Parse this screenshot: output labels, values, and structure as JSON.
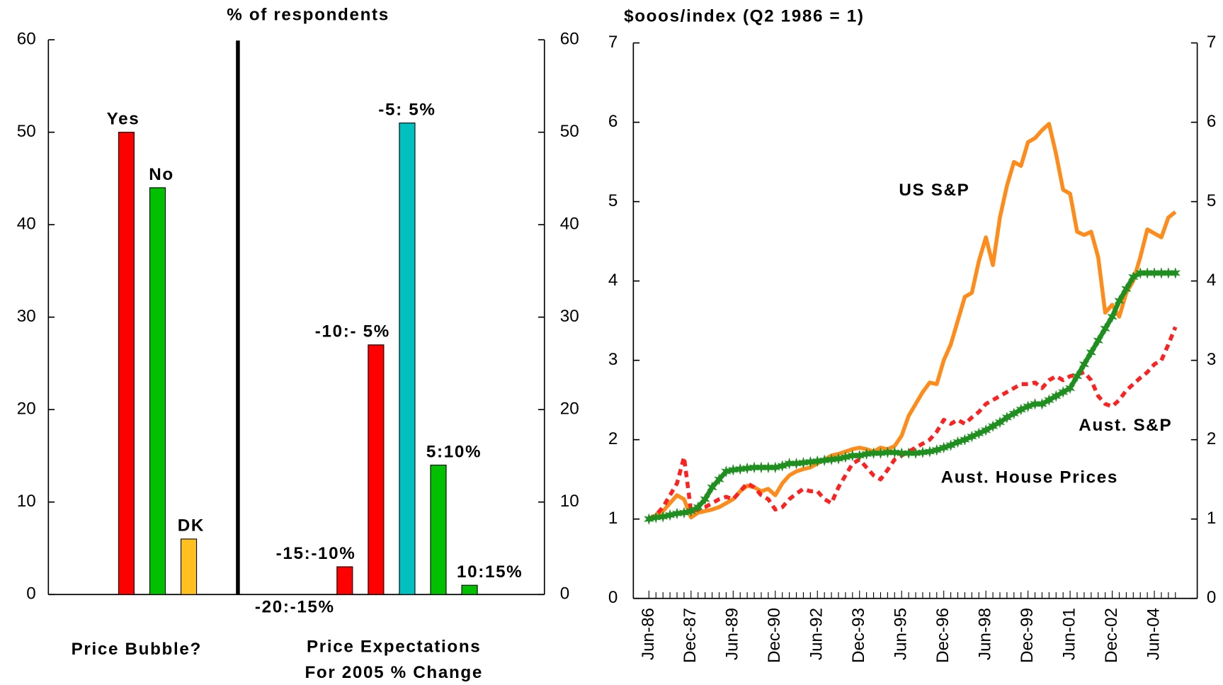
{
  "chart_data": [
    {
      "type": "grouped_bar",
      "title": "% of respondents",
      "ylim": [
        0,
        60
      ],
      "yticks": [
        0,
        10,
        20,
        30,
        40,
        50,
        60
      ],
      "groups": [
        {
          "name_lines": [
            "Price Bubble?"
          ],
          "categories": [
            "Yes",
            "No",
            "DK"
          ],
          "values": [
            50,
            44,
            6
          ],
          "colors": [
            "#ff0000",
            "#00c000",
            "#ffc020"
          ]
        },
        {
          "name_lines": [
            "Price Expectations",
            "For 2005 % Change"
          ],
          "categories": [
            "-20:-15%",
            "-15:-10%",
            "-10:- 5%",
            "-5: 5%",
            "5:10%",
            "10:15%"
          ],
          "values": [
            0,
            3,
            27,
            51,
            14,
            1
          ],
          "colors": [
            "#ff0000",
            "#ff0000",
            "#ff0000",
            "#00c0c0",
            "#00c000",
            "#00c000"
          ]
        }
      ]
    },
    {
      "type": "line",
      "title": "$ooos/index (Q2 1986 = 1)",
      "ylim": [
        0,
        7
      ],
      "yticks": [
        0,
        1,
        2,
        3,
        4,
        5,
        6,
        7
      ],
      "categories": [
        "Jun-86",
        null,
        null,
        null,
        null,
        null,
        "Dec-87",
        null,
        null,
        null,
        null,
        null,
        "Jun-89",
        null,
        null,
        null,
        null,
        null,
        "Dec-90",
        null,
        null,
        null,
        null,
        null,
        "Jun-92",
        null,
        null,
        null,
        null,
        null,
        "Dec-93",
        null,
        null,
        null,
        null,
        null,
        "Jun-95",
        null,
        null,
        null,
        null,
        null,
        "Dec-96",
        null,
        null,
        null,
        null,
        null,
        "Jun-98",
        null,
        null,
        null,
        null,
        null,
        "Dec-99",
        null,
        null,
        null,
        null,
        null,
        "Jun-01",
        null,
        null,
        null,
        null,
        null,
        "Dec-02",
        null,
        null,
        null,
        null,
        null,
        "Jun-04",
        null,
        null,
        null
      ],
      "series": [
        {
          "name": "US S&P",
          "color": "#ff8c1a",
          "style": "solid",
          "values": [
            1.0,
            1.05,
            1.1,
            1.2,
            1.3,
            1.25,
            1.02,
            1.08,
            1.1,
            1.12,
            1.15,
            1.2,
            1.25,
            1.35,
            1.42,
            1.4,
            1.35,
            1.38,
            1.3,
            1.45,
            1.55,
            1.6,
            1.63,
            1.65,
            1.7,
            1.75,
            1.8,
            1.82,
            1.85,
            1.88,
            1.9,
            1.88,
            1.85,
            1.9,
            1.88,
            1.92,
            2.05,
            2.3,
            2.45,
            2.6,
            2.72,
            2.7,
            3.0,
            3.2,
            3.5,
            3.8,
            3.85,
            4.25,
            4.55,
            4.2,
            4.8,
            5.2,
            5.5,
            5.45,
            5.75,
            5.8,
            5.9,
            5.98,
            5.6,
            5.15,
            5.1,
            4.62,
            4.58,
            4.62,
            4.3,
            3.6,
            3.7,
            3.55,
            3.85,
            4.0,
            4.3,
            4.65,
            4.6,
            4.55,
            4.8,
            4.87
          ]
        },
        {
          "name": "Aust. S&P",
          "color": "#ff2020",
          "style": "dotted",
          "values": [
            1.0,
            1.05,
            1.15,
            1.3,
            1.45,
            1.78,
            1.1,
            1.12,
            1.15,
            1.2,
            1.25,
            1.28,
            1.25,
            1.35,
            1.45,
            1.4,
            1.3,
            1.25,
            1.12,
            1.15,
            1.25,
            1.32,
            1.38,
            1.35,
            1.35,
            1.25,
            1.2,
            1.4,
            1.55,
            1.7,
            1.75,
            1.65,
            1.55,
            1.5,
            1.62,
            1.75,
            1.8,
            1.85,
            1.9,
            1.95,
            2.0,
            2.1,
            2.25,
            2.2,
            2.25,
            2.2,
            2.28,
            2.35,
            2.45,
            2.5,
            2.55,
            2.6,
            2.65,
            2.7,
            2.7,
            2.72,
            2.65,
            2.75,
            2.8,
            2.75,
            2.8,
            2.82,
            2.85,
            2.75,
            2.55,
            2.45,
            2.42,
            2.5,
            2.62,
            2.7,
            2.78,
            2.85,
            2.95,
            3.0,
            3.2,
            3.42
          ]
        },
        {
          "name": "Aust. House Prices",
          "color": "#1f8f1f",
          "style": "stars",
          "values": [
            1.0,
            1.02,
            1.03,
            1.05,
            1.07,
            1.08,
            1.1,
            1.15,
            1.25,
            1.4,
            1.5,
            1.6,
            1.62,
            1.63,
            1.64,
            1.65,
            1.65,
            1.65,
            1.65,
            1.67,
            1.7,
            1.7,
            1.71,
            1.72,
            1.73,
            1.74,
            1.75,
            1.76,
            1.78,
            1.8,
            1.8,
            1.82,
            1.83,
            1.83,
            1.84,
            1.84,
            1.83,
            1.83,
            1.83,
            1.84,
            1.85,
            1.87,
            1.9,
            1.93,
            1.97,
            2.0,
            2.04,
            2.08,
            2.12,
            2.17,
            2.22,
            2.28,
            2.33,
            2.38,
            2.42,
            2.45,
            2.45,
            2.5,
            2.55,
            2.6,
            2.65,
            2.8,
            2.95,
            3.1,
            3.25,
            3.4,
            3.55,
            3.75,
            3.9,
            4.05,
            4.1,
            4.1,
            4.1,
            4.1,
            4.1,
            4.1
          ]
        }
      ]
    }
  ]
}
